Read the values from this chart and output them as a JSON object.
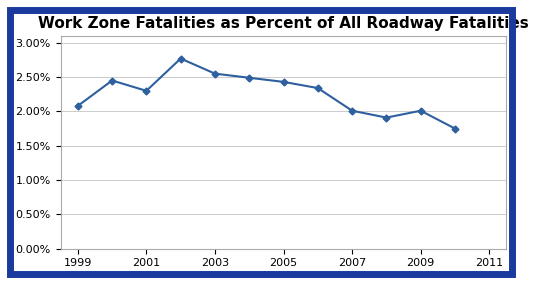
{
  "title": "Work Zone Fatalities as Percent of All Roadway Fatalities",
  "years": [
    1999,
    2000,
    2001,
    2002,
    2003,
    2004,
    2005,
    2006,
    2007,
    2008,
    2009,
    2010
  ],
  "values": [
    0.0208,
    0.0245,
    0.023,
    0.0277,
    0.0255,
    0.0249,
    0.0243,
    0.0234,
    0.0201,
    0.0191,
    0.0201,
    0.0175
  ],
  "line_color": "#2E5F9E",
  "marker": "D",
  "marker_size": 3.5,
  "background_color": "#FFFFFF",
  "border_color": "#1A3A9E",
  "xlim": [
    1998.5,
    2011.5
  ],
  "ylim": [
    0.0,
    0.031
  ],
  "xticks": [
    1999,
    2001,
    2003,
    2005,
    2007,
    2009,
    2011
  ],
  "yticks": [
    0.0,
    0.005,
    0.01,
    0.015,
    0.02,
    0.025,
    0.03
  ],
  "ytick_labels": [
    "0.00%",
    "0.50%",
    "1.00%",
    "1.50%",
    "2.00%",
    "2.50%",
    "3.00%"
  ],
  "title_fontsize": 11,
  "tick_fontsize": 8,
  "grid_color": "#CCCCCC",
  "plot_bg_color": "#FFFFFF"
}
